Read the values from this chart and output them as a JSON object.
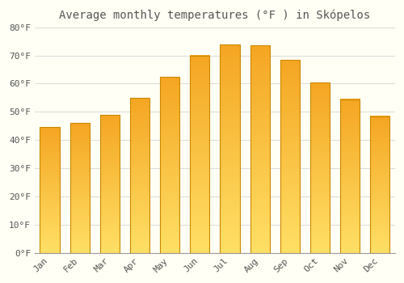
{
  "title": "Average monthly temperatures (°F ) in Skópelos",
  "months": [
    "Jan",
    "Feb",
    "Mar",
    "Apr",
    "May",
    "Jun",
    "Jul",
    "Aug",
    "Sep",
    "Oct",
    "Nov",
    "Dec"
  ],
  "values": [
    44.5,
    46.0,
    49.0,
    55.0,
    62.5,
    70.0,
    74.0,
    73.5,
    68.5,
    60.5,
    54.5,
    48.5
  ],
  "bar_color_top": "#F5A623",
  "bar_color_bottom": "#FFE066",
  "bar_edge_color": "#CC8800",
  "background_color": "#FFFFF5",
  "grid_color": "#DDDDDD",
  "ylim": [
    0,
    80
  ],
  "yticks": [
    0,
    10,
    20,
    30,
    40,
    50,
    60,
    70,
    80
  ],
  "ytick_labels": [
    "0°F",
    "10°F",
    "20°F",
    "30°F",
    "40°F",
    "50°F",
    "60°F",
    "70°F",
    "80°F"
  ],
  "title_fontsize": 10,
  "tick_fontsize": 8,
  "font_color": "#555555"
}
